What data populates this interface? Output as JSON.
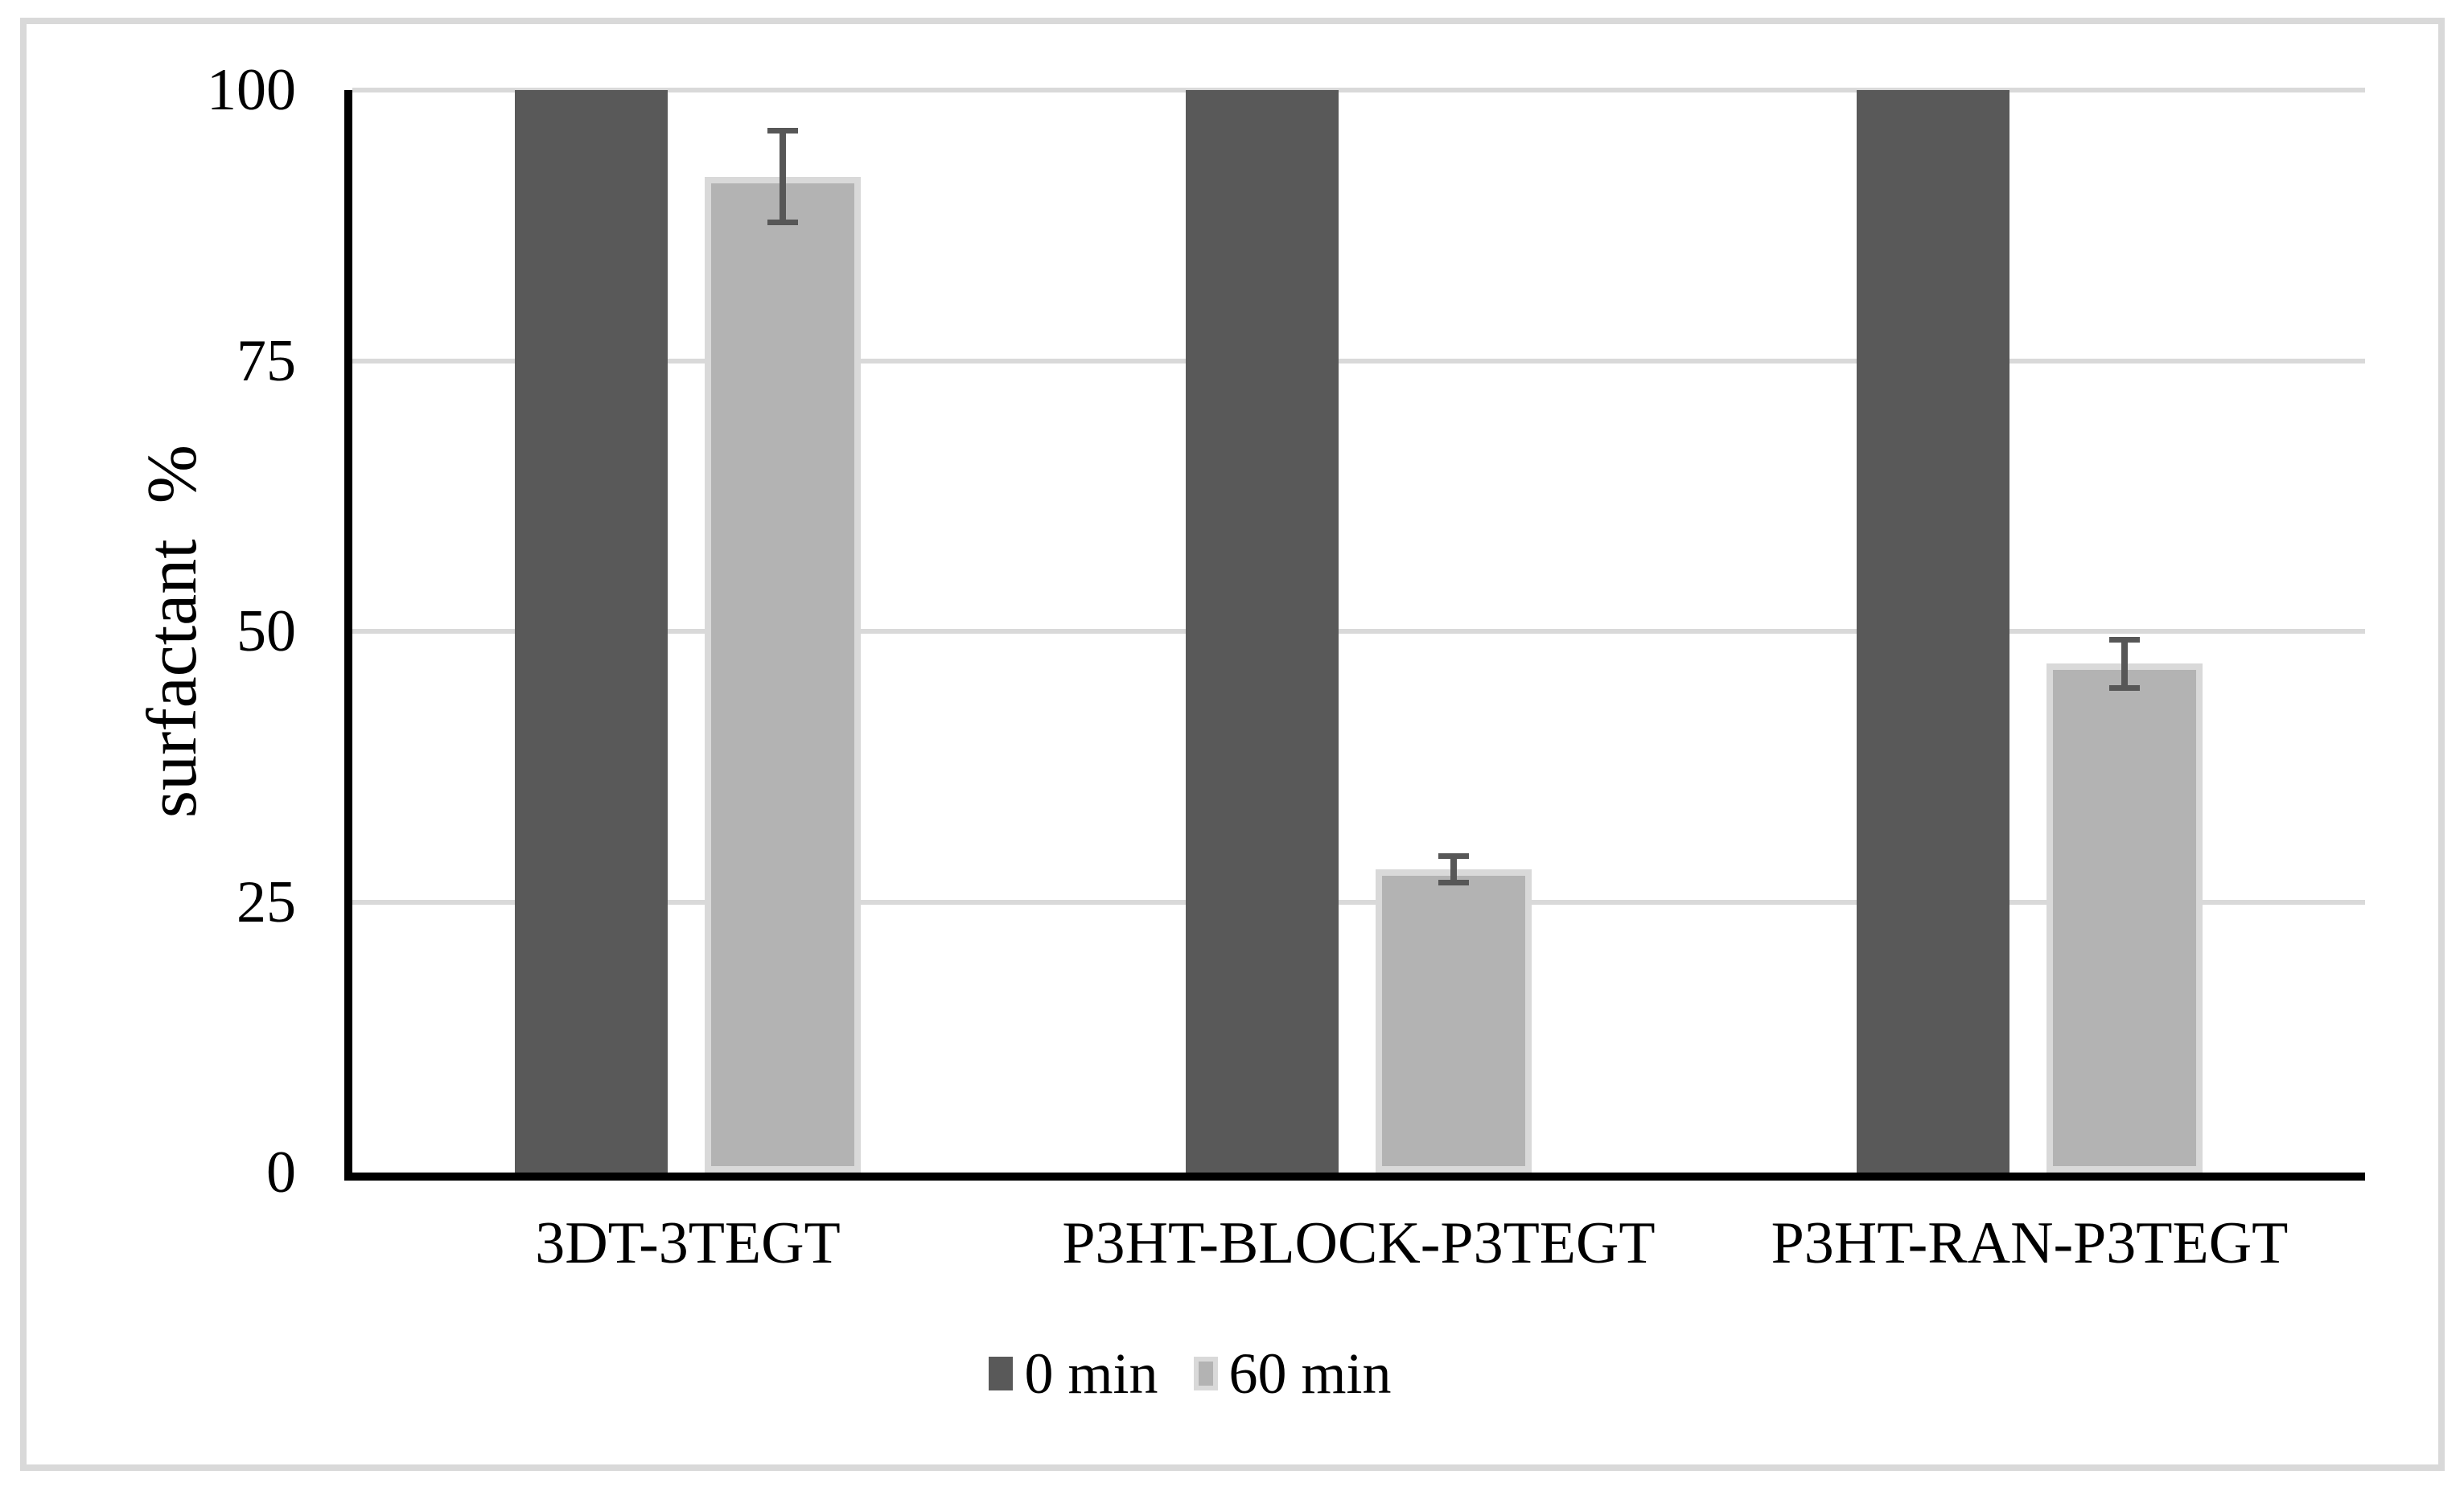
{
  "figure": {
    "background": "#ffffff",
    "border_color": "#d9d9d9"
  },
  "chart_data": {
    "type": "bar",
    "title": "",
    "ylabel": "surfactant  %",
    "xlabel": "",
    "categories": [
      "3DT-3TEGT",
      "P3HT-BLOCK-P3TEGT",
      "P3HT-RAN-P3TEGT"
    ],
    "series": [
      {
        "name": "0 min",
        "color": "#595959",
        "values": [
          100,
          100,
          100
        ],
        "errors": [
          0,
          0,
          0
        ]
      },
      {
        "name": "60 min",
        "color": "#b3b3b3",
        "border_color": "#d9d9d9",
        "values": [
          92,
          28,
          47
        ],
        "errors": [
          4.5,
          1.5,
          2.5
        ]
      }
    ],
    "ylim": [
      0,
      100
    ],
    "yticks": [
      0,
      25,
      50,
      75,
      100
    ],
    "grid": true,
    "gridline_color": "#d9d9d9",
    "axis_color": "#000000",
    "error_bar_color": "#575757",
    "legend_position": "bottom"
  }
}
